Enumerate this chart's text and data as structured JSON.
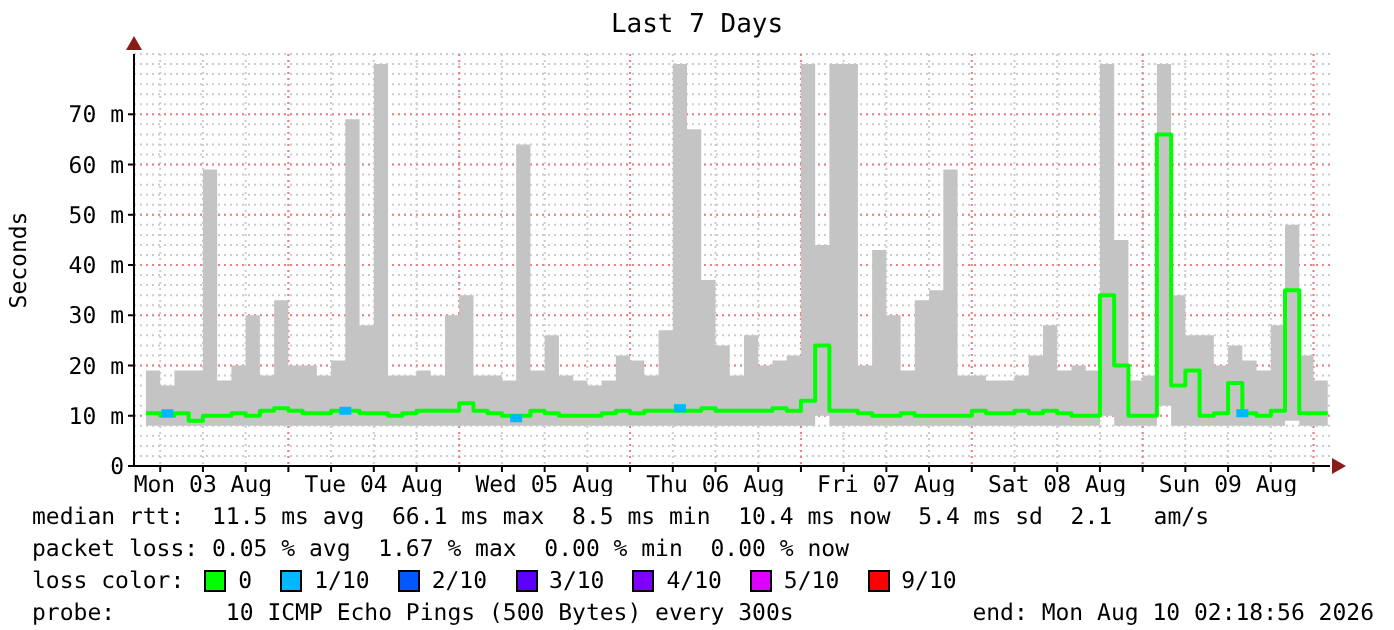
{
  "chart_data": {
    "type": "step",
    "title": "Last 7 Days",
    "ylabel": "Seconds",
    "x": [
      "2026-08-03T04:00",
      "2026-08-03T06:00",
      "2026-08-03T08:00",
      "2026-08-03T10:00",
      "2026-08-03T12:00",
      "2026-08-03T14:00",
      "2026-08-03T16:00",
      "2026-08-03T18:00",
      "2026-08-03T20:00",
      "2026-08-03T22:00",
      "2026-08-04T00:00",
      "2026-08-04T02:00",
      "2026-08-04T04:00",
      "2026-08-04T06:00",
      "2026-08-04T08:00",
      "2026-08-04T10:00",
      "2026-08-04T12:00",
      "2026-08-04T14:00",
      "2026-08-04T16:00",
      "2026-08-04T18:00",
      "2026-08-04T20:00",
      "2026-08-04T22:00",
      "2026-08-05T00:00",
      "2026-08-05T02:00",
      "2026-08-05T04:00",
      "2026-08-05T06:00",
      "2026-08-05T08:00",
      "2026-08-05T10:00",
      "2026-08-05T12:00",
      "2026-08-05T14:00",
      "2026-08-05T16:00",
      "2026-08-05T18:00",
      "2026-08-05T20:00",
      "2026-08-05T22:00",
      "2026-08-06T00:00",
      "2026-08-06T02:00",
      "2026-08-06T04:00",
      "2026-08-06T06:00",
      "2026-08-06T08:00",
      "2026-08-06T10:00",
      "2026-08-06T12:00",
      "2026-08-06T14:00",
      "2026-08-06T16:00",
      "2026-08-06T18:00",
      "2026-08-06T20:00",
      "2026-08-06T22:00",
      "2026-08-07T00:00",
      "2026-08-07T02:00",
      "2026-08-07T04:00",
      "2026-08-07T06:00",
      "2026-08-07T08:00",
      "2026-08-07T10:00",
      "2026-08-07T12:00",
      "2026-08-07T14:00",
      "2026-08-07T16:00",
      "2026-08-07T18:00",
      "2026-08-07T20:00",
      "2026-08-07T22:00",
      "2026-08-08T00:00",
      "2026-08-08T02:00",
      "2026-08-08T04:00",
      "2026-08-08T06:00",
      "2026-08-08T08:00",
      "2026-08-08T10:00",
      "2026-08-08T12:00",
      "2026-08-08T14:00",
      "2026-08-08T16:00",
      "2026-08-08T18:00",
      "2026-08-08T20:00",
      "2026-08-08T22:00",
      "2026-08-09T00:00",
      "2026-08-09T02:00",
      "2026-08-09T04:00",
      "2026-08-09T06:00",
      "2026-08-09T08:00",
      "2026-08-09T10:00",
      "2026-08-09T12:00",
      "2026-08-09T14:00",
      "2026-08-09T16:00",
      "2026-08-09T18:00",
      "2026-08-09T20:00",
      "2026-08-09T22:00",
      "2026-08-10T00:00",
      "2026-08-10T02:00"
    ],
    "series": [
      {
        "name": "0",
        "color": "#00ff00",
        "marker": "none",
        "values": [
          10.5,
          10,
          10.5,
          9,
          10,
          10,
          10.5,
          10,
          11,
          11.5,
          11,
          10.5,
          10.5,
          11,
          11,
          10.5,
          10.5,
          10,
          10.5,
          11,
          11,
          11,
          12.5,
          11,
          10.5,
          10,
          10,
          11,
          10.5,
          10,
          10,
          10,
          10.5,
          11,
          10.5,
          11,
          11,
          11,
          11,
          11.5,
          11,
          11,
          11,
          11,
          11.5,
          11,
          13,
          24,
          11,
          11,
          10.5,
          10,
          10,
          10.5,
          10,
          10,
          10,
          10,
          11,
          10.5,
          10.5,
          11,
          10.5,
          11,
          10.5,
          10,
          10,
          34,
          20,
          10,
          10,
          66,
          16,
          19,
          10,
          10.5,
          16.5,
          10.5,
          10,
          11,
          35,
          10.5,
          10.5,
          10.5
        ],
        "lower": [
          8,
          8,
          8,
          8,
          8,
          8,
          8,
          8,
          8,
          8,
          8,
          8,
          8,
          8,
          8,
          8,
          8,
          8,
          8,
          8,
          8,
          8,
          8,
          8,
          8,
          8,
          8,
          8,
          8,
          8,
          8,
          8,
          8,
          8,
          8,
          8,
          8,
          8,
          8,
          8,
          8,
          8,
          8,
          8,
          8,
          8,
          8,
          10,
          8,
          8,
          8,
          8,
          8,
          8,
          8,
          8,
          8,
          8,
          8,
          8,
          8,
          8,
          8,
          8,
          8,
          8,
          8,
          10,
          8,
          8,
          8,
          12,
          8,
          8,
          8,
          8,
          8,
          8,
          8,
          8,
          9,
          8,
          8,
          8
        ],
        "upper": [
          19,
          16,
          19,
          19,
          59,
          17,
          20,
          30,
          18,
          33,
          20,
          20,
          18,
          21,
          69,
          28,
          80,
          18,
          18,
          19,
          18,
          30,
          34,
          18,
          18,
          17,
          64,
          19,
          26,
          18,
          17,
          16,
          17,
          22,
          21,
          18,
          27,
          80,
          67,
          37,
          24,
          18,
          26,
          20,
          21,
          22,
          80,
          44,
          80,
          80,
          20,
          43,
          30,
          19,
          33,
          35,
          59,
          18,
          18,
          17,
          17,
          18,
          22,
          28,
          19,
          20,
          19,
          80,
          45,
          17,
          18,
          80,
          34,
          26,
          26,
          20,
          24,
          21,
          19,
          28,
          48,
          22,
          17,
          17
        ]
      },
      {
        "name": "1/10",
        "type": "scatter",
        "marker": "square",
        "color": "#00b8ff",
        "x": [
          "2026-08-03T07:00",
          "2026-08-04T08:00",
          "2026-08-05T08:00",
          "2026-08-06T07:00",
          "2026-08-09T14:00"
        ],
        "values": [
          10.5,
          11,
          9.5,
          11.5,
          10.5
        ]
      },
      {
        "name": "2/10",
        "type": "scatter",
        "marker": "square",
        "color": "#0059ff",
        "values": [
          null,
          null,
          null,
          null,
          null,
          null,
          null,
          null,
          null,
          null,
          null,
          null,
          null,
          null,
          null,
          null,
          null,
          null,
          null,
          null,
          null,
          null,
          null,
          null,
          null,
          null,
          null,
          null,
          null,
          null,
          null,
          null,
          null,
          null,
          null,
          null,
          null,
          null,
          null,
          null,
          null,
          null,
          null,
          null,
          null,
          null,
          null,
          null,
          null,
          null,
          null,
          null,
          null,
          null,
          null,
          null,
          null,
          null,
          null,
          null,
          null,
          null,
          null,
          null,
          null,
          null,
          null,
          null,
          null,
          null,
          null,
          null,
          null,
          null,
          null,
          null,
          null,
          null,
          null,
          null,
          null,
          null,
          null,
          null
        ]
      },
      {
        "name": "3/10",
        "type": "scatter",
        "marker": "square",
        "color": "#5e00ff",
        "values": [
          null,
          null,
          null,
          null,
          null,
          null,
          null,
          null,
          null,
          null,
          null,
          null,
          null,
          null,
          null,
          null,
          null,
          null,
          null,
          null,
          null,
          null,
          null,
          null,
          null,
          null,
          null,
          null,
          null,
          null,
          null,
          null,
          null,
          null,
          null,
          null,
          null,
          null,
          null,
          null,
          null,
          null,
          null,
          null,
          null,
          null,
          null,
          null,
          null,
          null,
          null,
          null,
          null,
          null,
          null,
          null,
          null,
          null,
          null,
          null,
          null,
          null,
          null,
          null,
          null,
          null,
          null,
          null,
          null,
          null,
          null,
          null,
          null,
          null,
          null,
          null,
          null,
          null,
          null,
          null,
          null,
          null,
          null,
          null
        ]
      },
      {
        "name": "4/10",
        "type": "scatter",
        "marker": "square",
        "color": "#7e00ff",
        "values": [
          null,
          null,
          null,
          null,
          null,
          null,
          null,
          null,
          null,
          null,
          null,
          null,
          null,
          null,
          null,
          null,
          null,
          null,
          null,
          null,
          null,
          null,
          null,
          null,
          null,
          null,
          null,
          null,
          null,
          null,
          null,
          null,
          null,
          null,
          null,
          null,
          null,
          null,
          null,
          null,
          null,
          null,
          null,
          null,
          null,
          null,
          null,
          null,
          null,
          null,
          null,
          null,
          null,
          null,
          null,
          null,
          null,
          null,
          null,
          null,
          null,
          null,
          null,
          null,
          null,
          null,
          null,
          null,
          null,
          null,
          null,
          null,
          null,
          null,
          null,
          null,
          null,
          null,
          null,
          null,
          null,
          null,
          null,
          null
        ]
      },
      {
        "name": "5/10",
        "type": "scatter",
        "marker": "square",
        "color": "#dd00ff",
        "values": [
          null,
          null,
          null,
          null,
          null,
          null,
          null,
          null,
          null,
          null,
          null,
          null,
          null,
          null,
          null,
          null,
          null,
          null,
          null,
          null,
          null,
          null,
          null,
          null,
          null,
          null,
          null,
          null,
          null,
          null,
          null,
          null,
          null,
          null,
          null,
          null,
          null,
          null,
          null,
          null,
          null,
          null,
          null,
          null,
          null,
          null,
          null,
          null,
          null,
          null,
          null,
          null,
          null,
          null,
          null,
          null,
          null,
          null,
          null,
          null,
          null,
          null,
          null,
          null,
          null,
          null,
          null,
          null,
          null,
          null,
          null,
          null,
          null,
          null,
          null,
          null,
          null,
          null,
          null,
          null,
          null,
          null,
          null,
          null
        ]
      },
      {
        "name": "9/10",
        "type": "scatter",
        "marker": "square",
        "color": "#ff0000",
        "values": [
          null,
          null,
          null,
          null,
          null,
          null,
          null,
          null,
          null,
          null,
          null,
          null,
          null,
          null,
          null,
          null,
          null,
          null,
          null,
          null,
          null,
          null,
          null,
          null,
          null,
          null,
          null,
          null,
          null,
          null,
          null,
          null,
          null,
          null,
          null,
          null,
          null,
          null,
          null,
          null,
          null,
          null,
          null,
          null,
          null,
          null,
          null,
          null,
          null,
          null,
          null,
          null,
          null,
          null,
          null,
          null,
          null,
          null,
          null,
          null,
          null,
          null,
          null,
          null,
          null,
          null,
          null,
          null,
          null,
          null,
          null,
          null,
          null,
          null,
          null,
          null,
          null,
          null,
          null,
          null,
          null,
          null,
          null,
          null
        ]
      }
    ],
    "legend_title": "loss color:",
    "legend": "bottom",
    "xlim": [
      "2026-08-03T02:19",
      "2026-08-10T02:19"
    ],
    "xticks": [
      {
        "value": "2026-08-03T06:00",
        "label": null
      },
      {
        "value": "2026-08-03T12:00",
        "label": "Mon 03 Aug"
      },
      {
        "value": "2026-08-03T18:00",
        "label": null
      },
      {
        "value": "2026-08-04T00:00",
        "label": null
      },
      {
        "value": "2026-08-04T06:00",
        "label": null
      },
      {
        "value": "2026-08-04T12:00",
        "label": "Tue 04 Aug"
      },
      {
        "value": "2026-08-04T18:00",
        "label": null
      },
      {
        "value": "2026-08-05T00:00",
        "label": null
      },
      {
        "value": "2026-08-05T06:00",
        "label": null
      },
      {
        "value": "2026-08-05T12:00",
        "label": "Wed 05 Aug"
      },
      {
        "value": "2026-08-05T18:00",
        "label": null
      },
      {
        "value": "2026-08-06T00:00",
        "label": null
      },
      {
        "value": "2026-08-06T06:00",
        "label": null
      },
      {
        "value": "2026-08-06T12:00",
        "label": "Thu 06 Aug"
      },
      {
        "value": "2026-08-06T18:00",
        "label": null
      },
      {
        "value": "2026-08-07T00:00",
        "label": null
      },
      {
        "value": "2026-08-07T06:00",
        "label": null
      },
      {
        "value": "2026-08-07T12:00",
        "label": "Fri 07 Aug"
      },
      {
        "value": "2026-08-07T18:00",
        "label": null
      },
      {
        "value": "2026-08-08T00:00",
        "label": null
      },
      {
        "value": "2026-08-08T06:00",
        "label": null
      },
      {
        "value": "2026-08-08T12:00",
        "label": "Sat 08 Aug"
      },
      {
        "value": "2026-08-08T18:00",
        "label": null
      },
      {
        "value": "2026-08-09T00:00",
        "label": null
      },
      {
        "value": "2026-08-09T06:00",
        "label": null
      },
      {
        "value": "2026-08-09T12:00",
        "label": "Sun 09 Aug"
      },
      {
        "value": "2026-08-09T18:00",
        "label": null
      },
      {
        "value": "2026-08-10T00:00",
        "label": null
      }
    ],
    "ylim": [
      0,
      82
    ],
    "yticks": [
      0,
      {
        "value": 10,
        "label": "10 m"
      },
      {
        "value": 20,
        "label": "20 m"
      },
      {
        "value": 30,
        "label": "30 m"
      },
      {
        "value": 40,
        "label": "40 m"
      },
      {
        "value": 50,
        "label": "50 m"
      },
      {
        "value": 60,
        "label": "60 m"
      },
      {
        "value": 70,
        "label": "70 m"
      }
    ],
    "grid": true,
    "annotations": [
      "median rtt:  11.5 ms avg  66.1 ms max  8.5 ms min  10.4 ms now  5.4 ms sd  2.1   am/s",
      "packet loss: 0.05 % avg  1.67 % max  0.00 % min  0.00 % now",
      "probe:        10 ICMP Echo Pings (500 Bytes) every 300s",
      "end: Mon Aug 10 02:18:56 2026"
    ]
  }
}
